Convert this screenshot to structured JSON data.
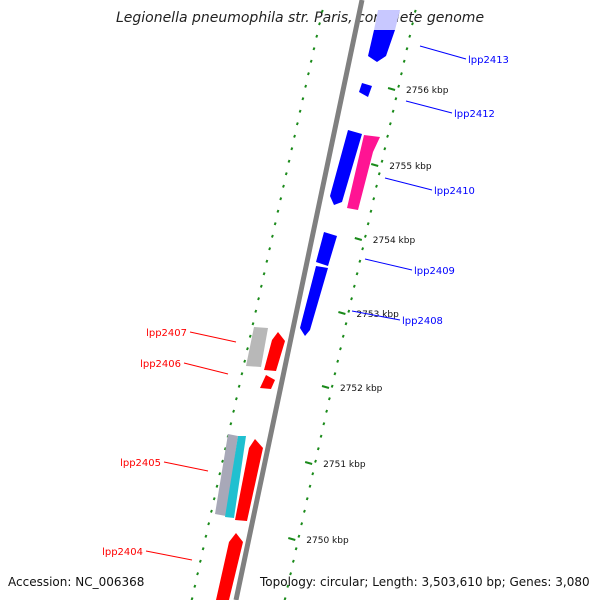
{
  "title": "Legionella pneumophila str. Paris, complete genome",
  "footer": {
    "accession": "Accession: NC_006368",
    "summary": "Topology: circular; Length: 3,503,610 bp; Genes: 3,080"
  },
  "colors": {
    "forward_strand": "#0000ff",
    "reverse_strand": "#ff0000",
    "pink_feature": "#ff1493",
    "grey_feature": "#b0b0b0",
    "cyan_feature": "#20c0d0",
    "backbone": "#808080",
    "tick": "#1a8a1a"
  },
  "ticks": [
    {
      "label": "2756 kbp"
    },
    {
      "label": "2755 kbp"
    },
    {
      "label": "2754 kbp"
    },
    {
      "label": "2753 kbp"
    },
    {
      "label": "2752 kbp"
    },
    {
      "label": "2751 kbp"
    },
    {
      "label": "2750 kbp"
    }
  ],
  "genes": [
    {
      "label": "lpp2413",
      "strand": "forward"
    },
    {
      "label": "lpp2412",
      "strand": "forward"
    },
    {
      "label": "lpp2410",
      "strand": "forward"
    },
    {
      "label": "lpp2409",
      "strand": "forward"
    },
    {
      "label": "lpp2408",
      "strand": "forward"
    },
    {
      "label": "lpp2407",
      "strand": "reverse"
    },
    {
      "label": "lpp2406",
      "strand": "reverse"
    },
    {
      "label": "lpp2405",
      "strand": "reverse"
    },
    {
      "label": "lpp2404",
      "strand": "reverse"
    }
  ]
}
